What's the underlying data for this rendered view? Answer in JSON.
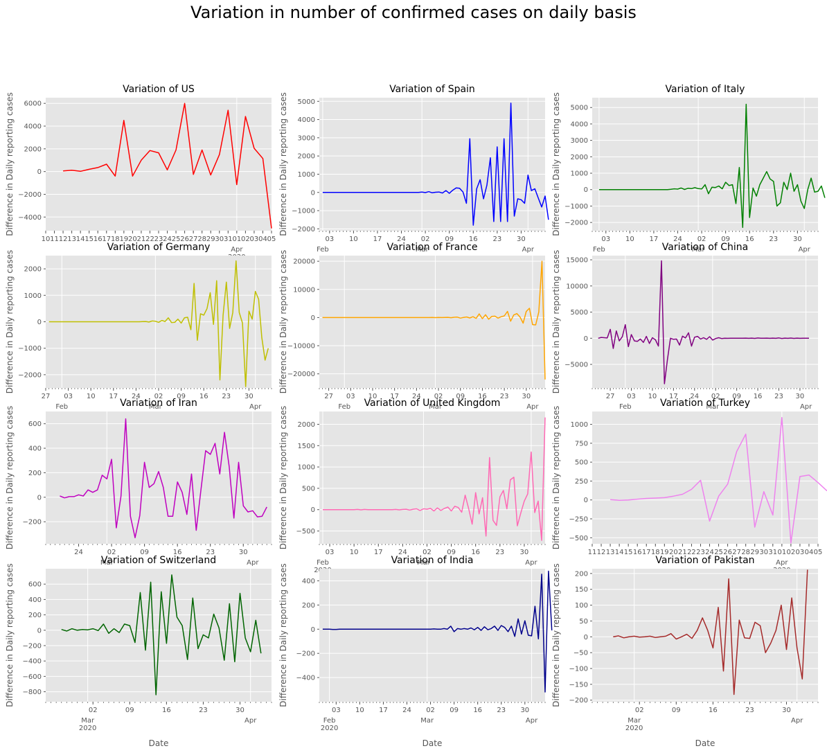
{
  "suptitle": "Variation in number of confirmed cases on daily basis",
  "shared": {
    "ylabel": "Difference in Daily reporting cases",
    "xlabel": "Date",
    "year_label": "2020",
    "month_labels": {
      "feb": "Feb",
      "mar": "Mar",
      "apr": "Apr"
    }
  },
  "chart_data": [
    {
      "type": "line",
      "title": "Variation of US",
      "color": "#ff0000",
      "x_start": "2020-03-12",
      "xlim": [
        "2020-03-10",
        "2020-04-05"
      ],
      "ylim": [
        -5200,
        6500
      ],
      "yticks": [
        -4000,
        -2000,
        0,
        2000,
        4000,
        6000
      ],
      "day_ticks": [
        "10",
        "11",
        "12",
        "13",
        "14",
        "15",
        "16",
        "17",
        "18",
        "19",
        "20",
        "21",
        "22",
        "23",
        "24",
        "25",
        "26",
        "27",
        "28",
        "29",
        "30",
        "31",
        "01",
        "02",
        "03",
        "04",
        "05"
      ],
      "month_ticks": [
        {
          "date": "2020-04-01",
          "label": "Apr",
          "year": "2020"
        }
      ],
      "show_xlabel": false,
      "values": [
        50,
        120,
        20,
        200,
        350,
        650,
        -400,
        4500,
        -400,
        1000,
        1850,
        1650,
        150,
        1900,
        6000,
        -250,
        1900,
        -300,
        1500,
        5400,
        -1150,
        4850,
        2050,
        1150,
        -5000
      ]
    },
    {
      "type": "line",
      "title": "Variation of Spain",
      "color": "#0000ff",
      "x_start": "2020-02-01",
      "xlim": [
        "2020-01-31",
        "2020-04-06"
      ],
      "ylim": [
        -2100,
        5200
      ],
      "yticks": [
        -2000,
        -1000,
        0,
        1000,
        2000,
        3000,
        4000,
        5000
      ],
      "day_ticks_dates": [
        "2020-02-03",
        "2020-02-10",
        "2020-02-17",
        "2020-02-24",
        "2020-03-02",
        "2020-03-09",
        "2020-03-16",
        "2020-03-23",
        "2020-03-30"
      ],
      "month_ticks": [
        {
          "date": "2020-02-01",
          "label": "Feb"
        },
        {
          "date": "2020-03-01",
          "label": "Mar"
        },
        {
          "date": "2020-04-01",
          "label": "Apr"
        }
      ],
      "show_xlabel": false,
      "values": [
        0,
        0,
        0,
        0,
        0,
        0,
        0,
        0,
        0,
        0,
        0,
        0,
        0,
        0,
        0,
        0,
        0,
        0,
        0,
        0,
        0,
        0,
        0,
        0,
        0,
        0,
        0,
        0,
        0,
        20,
        -10,
        40,
        -20,
        10,
        20,
        -30,
        100,
        -50,
        120,
        250,
        230,
        20,
        -600,
        2950,
        -1800,
        200,
        700,
        -350,
        400,
        1900,
        -1600,
        2500,
        -1600,
        2950,
        -1600,
        4900,
        -1300,
        -350,
        -400,
        -600,
        950,
        100,
        200,
        -300,
        -800,
        -200,
        -1500
      ]
    },
    {
      "type": "line",
      "title": "Variation of Italy",
      "color": "#008000",
      "x_start": "2020-02-01",
      "xlim": [
        "2020-01-30",
        "2020-04-05"
      ],
      "ylim": [
        -2500,
        5600
      ],
      "yticks": [
        -2000,
        -1000,
        0,
        1000,
        2000,
        3000,
        4000,
        5000
      ],
      "day_ticks_dates": [
        "2020-02-03",
        "2020-02-10",
        "2020-02-17",
        "2020-02-24",
        "2020-03-02",
        "2020-03-09",
        "2020-03-16",
        "2020-03-23",
        "2020-03-30"
      ],
      "month_ticks": [
        {
          "date": "2020-02-01",
          "label": "Feb"
        },
        {
          "date": "2020-03-01",
          "label": "Mar"
        },
        {
          "date": "2020-04-01",
          "label": "Apr"
        }
      ],
      "show_xlabel": false,
      "values": [
        0,
        0,
        0,
        0,
        0,
        0,
        0,
        0,
        0,
        0,
        0,
        0,
        0,
        0,
        0,
        0,
        0,
        0,
        0,
        0,
        0,
        20,
        50,
        30,
        100,
        10,
        80,
        60,
        120,
        60,
        40,
        300,
        -250,
        150,
        130,
        220,
        50,
        450,
        250,
        300,
        -850,
        1350,
        -2300,
        5200,
        -1700,
        100,
        -400,
        300,
        700,
        1100,
        650,
        500,
        -1000,
        -800,
        450,
        0,
        1000,
        -100,
        300,
        -700,
        -1150,
        0,
        700,
        -150,
        -100,
        220,
        -500
      ]
    },
    {
      "type": "line",
      "title": "Variation of Germany",
      "color": "#bfbf00",
      "x_start": "2020-01-28",
      "xlim": [
        "2020-01-27",
        "2020-04-06"
      ],
      "ylim": [
        -2500,
        2500
      ],
      "yticks": [
        -2000,
        -1000,
        0,
        1000,
        2000
      ],
      "day_ticks_dates": [
        "2020-01-27",
        "2020-02-03",
        "2020-02-10",
        "2020-02-17",
        "2020-02-24",
        "2020-03-02",
        "2020-03-09",
        "2020-03-16",
        "2020-03-23",
        "2020-03-30"
      ],
      "month_ticks": [
        {
          "date": "2020-02-01",
          "label": "Feb"
        },
        {
          "date": "2020-03-01",
          "label": "Mar"
        },
        {
          "date": "2020-04-01",
          "label": "Apr"
        }
      ],
      "show_xlabel": false,
      "values": [
        0,
        0,
        0,
        0,
        0,
        0,
        0,
        0,
        0,
        0,
        0,
        0,
        0,
        0,
        0,
        0,
        0,
        0,
        0,
        0,
        0,
        0,
        0,
        0,
        0,
        0,
        0,
        0,
        0,
        5,
        10,
        -10,
        30,
        20,
        -20,
        50,
        10,
        150,
        -30,
        -20,
        100,
        -50,
        150,
        170,
        -300,
        1450,
        -700,
        300,
        250,
        500,
        1100,
        -100,
        1550,
        -2200,
        250,
        1500,
        -250,
        350,
        2300,
        350,
        -50,
        -2450,
        400,
        100,
        1150,
        850,
        -600,
        -1450,
        -1000
      ]
    },
    {
      "type": "line",
      "title": "Variation of France",
      "color": "#ffa500",
      "x_start": "2020-01-25",
      "xlim": [
        "2020-01-24",
        "2020-04-05"
      ],
      "ylim": [
        -25000,
        22000
      ],
      "yticks": [
        -20000,
        -10000,
        0,
        10000,
        20000
      ],
      "day_ticks_dates": [
        "2020-01-27",
        "2020-02-03",
        "2020-02-10",
        "2020-02-17",
        "2020-02-24",
        "2020-03-02",
        "2020-03-09",
        "2020-03-16",
        "2020-03-23",
        "2020-03-30"
      ],
      "month_ticks": [
        {
          "date": "2020-02-01",
          "label": "Feb"
        },
        {
          "date": "2020-03-01",
          "label": "Mar"
        },
        {
          "date": "2020-04-01",
          "label": "Apr"
        }
      ],
      "show_xlabel": false,
      "values": [
        0,
        0,
        0,
        0,
        0,
        0,
        0,
        0,
        0,
        0,
        0,
        0,
        0,
        0,
        0,
        0,
        0,
        0,
        0,
        0,
        0,
        0,
        0,
        0,
        0,
        0,
        0,
        0,
        0,
        0,
        0,
        0,
        0,
        0,
        0,
        20,
        -30,
        40,
        10,
        50,
        80,
        -60,
        100,
        150,
        -200,
        50,
        200,
        -150,
        300,
        -300,
        1300,
        -400,
        1000,
        -600,
        400,
        500,
        -200,
        300,
        600,
        2200,
        -1300,
        900,
        1400,
        200,
        -2000,
        2200,
        3300,
        -2500,
        -2600,
        2000,
        20000,
        -22000
      ]
    },
    {
      "type": "line",
      "title": "Variation of China",
      "color": "#800080",
      "x_start": "2020-01-23",
      "xlim": [
        "2020-01-21",
        "2020-04-05"
      ],
      "ylim": [
        -9500,
        15800
      ],
      "yticks": [
        -5000,
        0,
        5000,
        10000,
        15000
      ],
      "day_ticks_dates": [
        "2020-01-27",
        "2020-02-03",
        "2020-02-10",
        "2020-02-17",
        "2020-02-24",
        "2020-03-02",
        "2020-03-09",
        "2020-03-16",
        "2020-03-23",
        "2020-03-30"
      ],
      "month_ticks": [
        {
          "date": "2020-02-01",
          "label": "Feb"
        },
        {
          "date": "2020-03-01",
          "label": "Mar"
        },
        {
          "date": "2020-04-01",
          "label": "Apr"
        }
      ],
      "show_xlabel": false,
      "values": [
        0,
        150,
        100,
        50,
        1700,
        -1950,
        1400,
        -500,
        300,
        2600,
        -1600,
        700,
        -500,
        -600,
        -150,
        -800,
        350,
        -1000,
        100,
        -300,
        -1500,
        14800,
        -8700,
        -4000,
        0,
        -200,
        -150,
        -1300,
        400,
        50,
        1050,
        -1500,
        200,
        350,
        -150,
        100,
        -200,
        300,
        -350,
        -50,
        100,
        -50,
        0,
        -10,
        10,
        -5,
        5,
        0,
        0,
        20,
        -15,
        30,
        -30,
        50,
        0,
        10,
        20,
        -20,
        30,
        -10,
        60,
        -40,
        20,
        -10,
        40,
        -30,
        20,
        -20,
        10,
        -5,
        10
      ]
    },
    {
      "type": "line",
      "title": "Variation of Iran",
      "color": "#bf00bf",
      "x_start": "2020-02-20",
      "xlim": [
        "2020-02-17",
        "2020-04-05"
      ],
      "ylim": [
        -380,
        700
      ],
      "yticks": [
        -200,
        0,
        200,
        400,
        600
      ],
      "day_ticks_dates": [
        "2020-02-24",
        "2020-03-02",
        "2020-03-09",
        "2020-03-16",
        "2020-03-23",
        "2020-03-30"
      ],
      "month_ticks": [
        {
          "date": "2020-03-01",
          "label": "Mar"
        },
        {
          "date": "2020-04-01",
          "label": "Apr"
        }
      ],
      "show_xlabel": false,
      "values": [
        10,
        -5,
        5,
        5,
        20,
        10,
        60,
        40,
        60,
        180,
        150,
        310,
        -250,
        10,
        640,
        -155,
        -330,
        -150,
        285,
        80,
        110,
        210,
        80,
        -155,
        -155,
        125,
        40,
        -140,
        190,
        -270,
        60,
        380,
        350,
        440,
        190,
        530,
        250,
        -170,
        285,
        -70,
        -120,
        -110,
        -160,
        -155,
        -80
      ]
    },
    {
      "type": "line",
      "title": "Variation of United Kingdom",
      "color": "#ff69b4",
      "x_start": "2020-02-01",
      "xlim": [
        "2020-01-31",
        "2020-04-05"
      ],
      "ylim": [
        -800,
        2300
      ],
      "yticks": [
        -500,
        0,
        500,
        1000,
        1500,
        2000
      ],
      "day_ticks_dates": [
        "2020-02-03",
        "2020-02-10",
        "2020-02-17",
        "2020-02-24",
        "2020-03-02",
        "2020-03-09",
        "2020-03-16",
        "2020-03-23",
        "2020-03-30"
      ],
      "month_ticks": [
        {
          "date": "2020-02-01",
          "label": "Feb",
          "year": "2020"
        },
        {
          "date": "2020-03-01",
          "label": "Mar"
        },
        {
          "date": "2020-04-01",
          "label": "Apr"
        }
      ],
      "show_xlabel": false,
      "values": [
        0,
        0,
        0,
        0,
        0,
        0,
        0,
        0,
        0,
        0,
        5,
        -5,
        5,
        0,
        0,
        0,
        0,
        0,
        0,
        0,
        0,
        5,
        -5,
        5,
        10,
        -10,
        10,
        20,
        -20,
        20,
        10,
        30,
        -30,
        40,
        -20,
        30,
        60,
        -30,
        80,
        50,
        -60,
        340,
        20,
        -340,
        400,
        -100,
        280,
        -620,
        1220,
        -250,
        -370,
        300,
        450,
        20,
        700,
        760,
        -380,
        -80,
        200,
        370,
        1350,
        -70,
        200,
        -720,
        2160
      ]
    },
    {
      "type": "line",
      "title": "Variation of Turkey",
      "color": "#ee82ee",
      "x_start": "2020-03-13",
      "xlim": [
        "2020-03-11",
        "2020-04-05"
      ],
      "ylim": [
        -580,
        1170
      ],
      "yticks": [
        -500,
        -250,
        0,
        250,
        500,
        750,
        1000
      ],
      "day_ticks": [
        "11",
        "12",
        "13",
        "14",
        "15",
        "16",
        "17",
        "18",
        "19",
        "20",
        "21",
        "22",
        "23",
        "24",
        "25",
        "26",
        "27",
        "28",
        "29",
        "30",
        "31",
        "01",
        "02",
        "03",
        "04",
        "05"
      ],
      "month_ticks": [
        {
          "date": "2020-04-01",
          "label": "Apr",
          "year": "2020"
        }
      ],
      "show_xlabel": false,
      "values": [
        5,
        -5,
        0,
        10,
        20,
        25,
        30,
        50,
        75,
        140,
        260,
        -280,
        50,
        210,
        640,
        870,
        -360,
        110,
        -200,
        1090,
        -570,
        310,
        330,
        230,
        120
      ]
    },
    {
      "type": "line",
      "title": "Variation of Switzerland",
      "color": "#006400",
      "x_start": "2020-02-25",
      "xlim": [
        "2020-02-22",
        "2020-04-05"
      ],
      "ylim": [
        -930,
        800
      ],
      "yticks": [
        -800,
        -600,
        -400,
        -200,
        0,
        200,
        400,
        600
      ],
      "day_ticks_dates": [
        "2020-03-02",
        "2020-03-09",
        "2020-03-16",
        "2020-03-23",
        "2020-03-30"
      ],
      "month_ticks": [
        {
          "date": "2020-03-01",
          "label": "Mar",
          "year": "2020"
        },
        {
          "date": "2020-04-01",
          "label": "Apr"
        }
      ],
      "show_xlabel": true,
      "values": [
        10,
        -10,
        20,
        0,
        10,
        5,
        20,
        -5,
        80,
        -40,
        20,
        -30,
        80,
        60,
        -160,
        490,
        -260,
        625,
        -840,
        500,
        -170,
        720,
        170,
        60,
        -380,
        420,
        -240,
        -60,
        -100,
        210,
        30,
        -390,
        345,
        -410,
        480,
        -100,
        -280,
        130,
        -300
      ]
    },
    {
      "type": "line",
      "title": "Variation of India",
      "color": "#00008b",
      "x_start": "2020-01-30",
      "xlim": [
        "2020-01-29",
        "2020-04-05"
      ],
      "ylim": [
        -600,
        500
      ],
      "yticks": [
        -400,
        -200,
        0,
        200,
        400
      ],
      "day_ticks_dates": [
        "2020-02-03",
        "2020-02-10",
        "2020-02-17",
        "2020-02-24",
        "2020-03-02",
        "2020-03-09",
        "2020-03-16",
        "2020-03-23",
        "2020-03-30"
      ],
      "month_ticks": [
        {
          "date": "2020-02-01",
          "label": "Feb",
          "year": "2020"
        },
        {
          "date": "2020-03-01",
          "label": "Mar"
        },
        {
          "date": "2020-04-01",
          "label": "Apr"
        }
      ],
      "show_xlabel": true,
      "values": [
        0,
        0,
        0,
        -2,
        -2,
        0,
        0,
        0,
        0,
        0,
        0,
        0,
        0,
        0,
        0,
        0,
        0,
        0,
        0,
        0,
        0,
        0,
        0,
        0,
        0,
        0,
        0,
        0,
        0,
        0,
        0,
        0,
        0,
        2,
        0,
        0,
        5,
        0,
        25,
        -20,
        5,
        0,
        5,
        0,
        10,
        -5,
        15,
        -10,
        20,
        -5,
        5,
        25,
        -10,
        30,
        15,
        -20,
        25,
        -60,
        85,
        -40,
        70,
        -50,
        -55,
        190,
        -80,
        455,
        -520,
        480,
        -10
      ]
    },
    {
      "type": "line",
      "title": "Variation of Pakistan",
      "color": "#a52a2a",
      "x_start": "2020-02-26",
      "xlim": [
        "2020-02-22",
        "2020-04-05"
      ],
      "ylim": [
        -205,
        215
      ],
      "yticks": [
        -200,
        -150,
        -100,
        -50,
        0,
        50,
        100,
        150,
        200
      ],
      "day_ticks_dates": [
        "2020-03-02",
        "2020-03-09",
        "2020-03-16",
        "2020-03-23",
        "2020-03-30"
      ],
      "month_ticks": [
        {
          "date": "2020-03-01",
          "label": "Mar",
          "year": "2020"
        },
        {
          "date": "2020-04-01",
          "label": "Apr"
        }
      ],
      "show_xlabel": true,
      "values": [
        0,
        3,
        -3,
        0,
        2,
        -1,
        0,
        2,
        -2,
        0,
        2,
        10,
        -7,
        0,
        8,
        -5,
        20,
        60,
        20,
        -35,
        93,
        -108,
        183,
        -182,
        53,
        -3,
        -5,
        46,
        35,
        -50,
        -20,
        20,
        100,
        -40,
        123,
        -35,
        -133,
        212
      ]
    }
  ]
}
